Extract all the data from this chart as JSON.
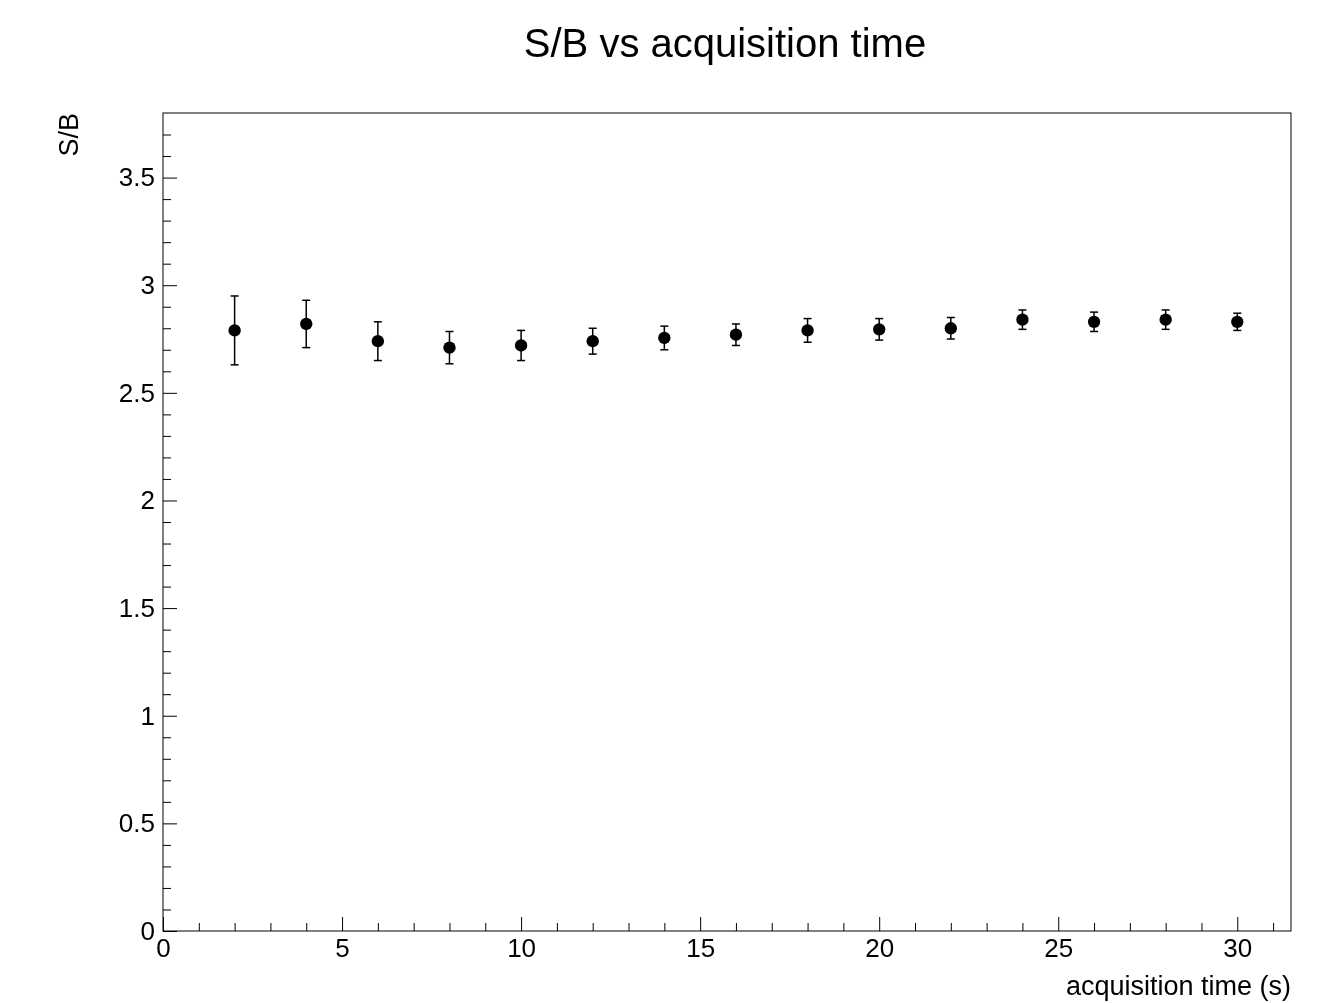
{
  "chart_data": {
    "type": "scatter",
    "title": "S/B vs acquisition time",
    "xlabel": "acquisition time (s)",
    "ylabel": "S/B",
    "marker": "circle",
    "grid": false,
    "x": [
      2,
      4,
      6,
      8,
      10,
      12,
      14,
      16,
      18,
      20,
      22,
      24,
      26,
      28,
      30
    ],
    "values": [
      2.79,
      2.82,
      2.74,
      2.71,
      2.72,
      2.74,
      2.755,
      2.77,
      2.79,
      2.795,
      2.8,
      2.84,
      2.83,
      2.84,
      2.83
    ],
    "errors": [
      0.16,
      0.11,
      0.09,
      0.075,
      0.07,
      0.06,
      0.055,
      0.05,
      0.055,
      0.05,
      0.05,
      0.045,
      0.045,
      0.045,
      0.04
    ],
    "color": "#000000",
    "xlim": [
      0,
      31.5
    ],
    "ylim": [
      0,
      3.8
    ],
    "xticks": [
      0,
      {
        "value": 1,
        "label": null
      },
      {
        "value": 2,
        "label": null
      },
      {
        "value": 3,
        "label": null
      },
      {
        "value": 4,
        "label": null
      },
      5,
      {
        "value": 6,
        "label": null
      },
      {
        "value": 7,
        "label": null
      },
      {
        "value": 8,
        "label": null
      },
      {
        "value": 9,
        "label": null
      },
      10,
      {
        "value": 11,
        "label": null
      },
      {
        "value": 12,
        "label": null
      },
      {
        "value": 13,
        "label": null
      },
      {
        "value": 14,
        "label": null
      },
      15,
      {
        "value": 16,
        "label": null
      },
      {
        "value": 17,
        "label": null
      },
      {
        "value": 18,
        "label": null
      },
      {
        "value": 19,
        "label": null
      },
      20,
      {
        "value": 21,
        "label": null
      },
      {
        "value": 22,
        "label": null
      },
      {
        "value": 23,
        "label": null
      },
      {
        "value": 24,
        "label": null
      },
      25,
      {
        "value": 26,
        "label": null
      },
      {
        "value": 27,
        "label": null
      },
      {
        "value": 28,
        "label": null
      },
      {
        "value": 29,
        "label": null
      },
      30,
      {
        "value": 31,
        "label": null
      }
    ],
    "yticks": [
      0,
      {
        "value": 0.1,
        "label": null
      },
      {
        "value": 0.2,
        "label": null
      },
      {
        "value": 0.3,
        "label": null
      },
      {
        "value": 0.4,
        "label": null
      },
      0.5,
      {
        "value": 0.6,
        "label": null
      },
      {
        "value": 0.7,
        "label": null
      },
      {
        "value": 0.8,
        "label": null
      },
      {
        "value": 0.9,
        "label": null
      },
      1,
      {
        "value": 1.1,
        "label": null
      },
      {
        "value": 1.2,
        "label": null
      },
      {
        "value": 1.3,
        "label": null
      },
      {
        "value": 1.4,
        "label": null
      },
      1.5,
      {
        "value": 1.6,
        "label": null
      },
      {
        "value": 1.7,
        "label": null
      },
      {
        "value": 1.8,
        "label": null
      },
      {
        "value": 1.9,
        "label": null
      },
      2,
      {
        "value": 2.1,
        "label": null
      },
      {
        "value": 2.2,
        "label": null
      },
      {
        "value": 2.3,
        "label": null
      },
      {
        "value": 2.4,
        "label": null
      },
      2.5,
      {
        "value": 2.6,
        "label": null
      },
      {
        "value": 2.7,
        "label": null
      },
      {
        "value": 2.8,
        "label": null
      },
      {
        "value": 2.9,
        "label": null
      },
      3,
      {
        "value": 3.1,
        "label": null
      },
      {
        "value": 3.2,
        "label": null
      },
      {
        "value": 3.3,
        "label": null
      },
      {
        "value": 3.4,
        "label": null
      },
      3.5,
      {
        "value": 3.6,
        "label": null
      },
      {
        "value": 3.7,
        "label": null
      }
    ]
  }
}
